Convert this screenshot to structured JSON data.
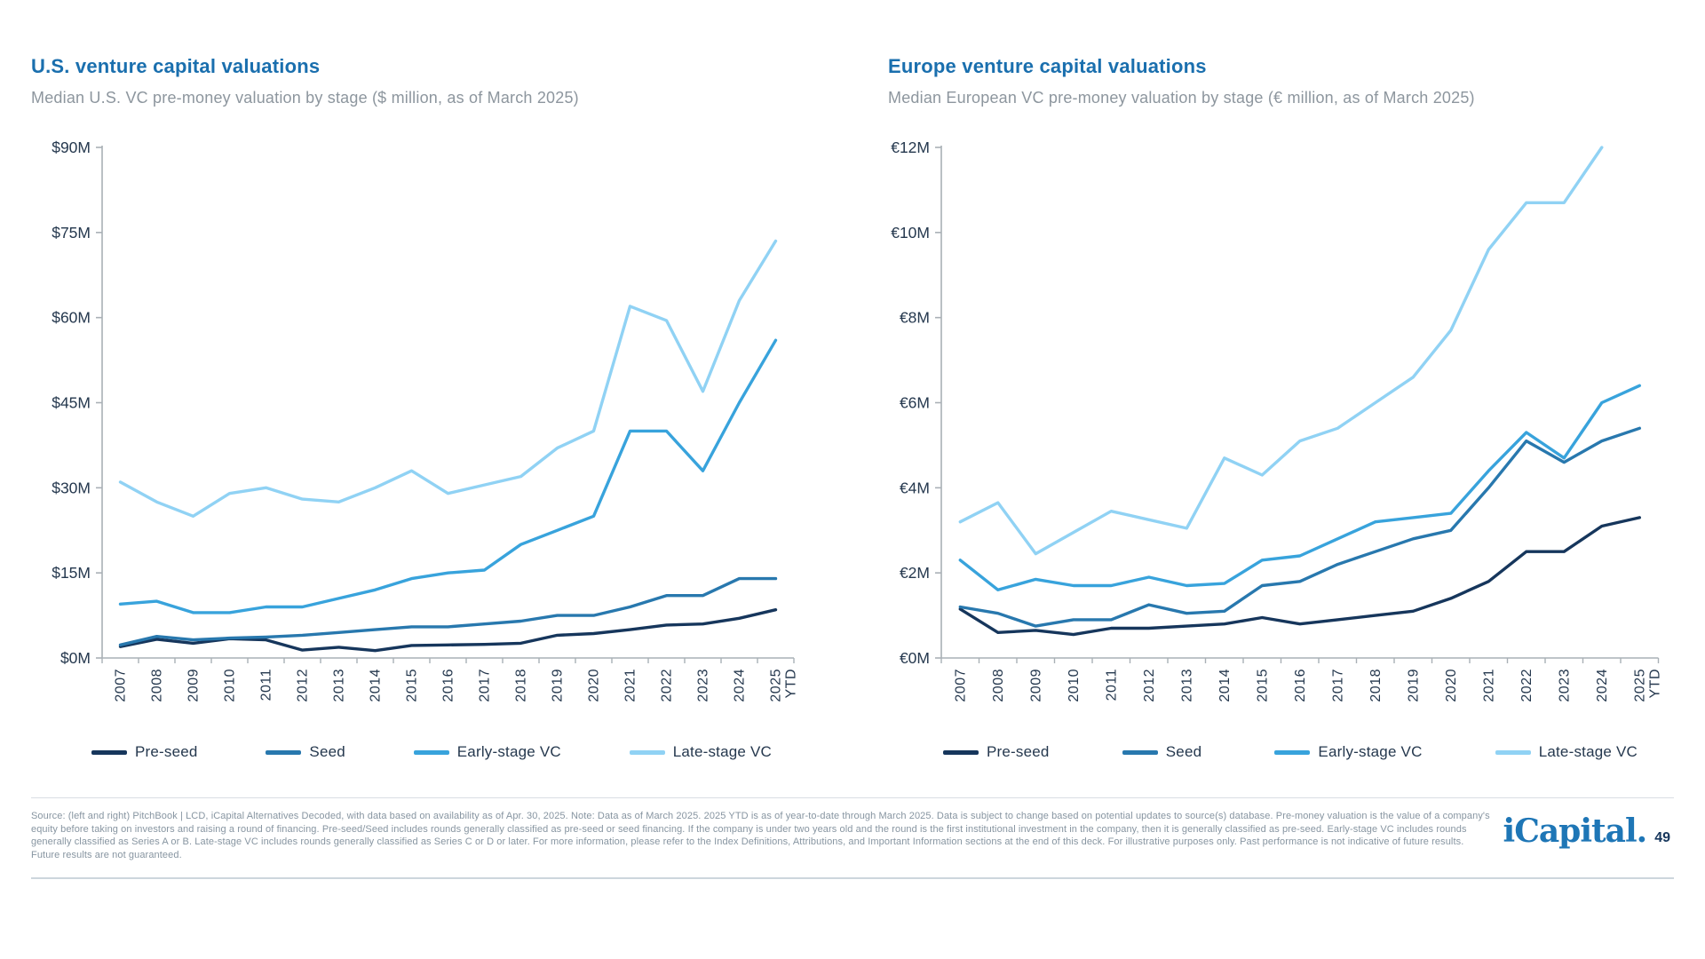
{
  "brand": {
    "logo_text": "iCapital.",
    "page_number": "49"
  },
  "footer": {
    "source_text": "Source: (left and right) PitchBook | LCD, iCapital Alternatives Decoded, with data based on availability as of Apr. 30, 2025. Note: Data as of March 2025. 2025 YTD is as of year-to-date through March 2025. Data is subject to change based on potential updates to source(s) database. Pre-money valuation is the value of a company's equity before taking on investors and raising a round of financing. Pre-seed/Seed includes rounds generally classified as pre-seed or seed financing. If the company is under two years old and the round is the first institutional investment in the company, then it is generally classified as pre-seed. Early-stage VC includes rounds generally classified as Series A or B. Late-stage VC includes rounds generally classified as Series C or D or later. For more information, please refer to the Index Definitions, Attributions, and Important Information sections at the end of this deck. For illustrative purposes only. Past performance is not indicative of future results. Future results are not guaranteed."
  },
  "colors": {
    "pre_seed": "#16365c",
    "seed": "#2878ae",
    "early_stage": "#38a3dc",
    "late_stage": "#90d2f4",
    "axis": "#a9b0b6",
    "tick_label": "#25384e"
  },
  "chart_data": [
    {
      "type": "line",
      "title": "U.S. venture capital valuations",
      "subtitle": "Median U.S. VC pre-money valuation by stage ($ million, as of March 2025)",
      "x_categories": [
        "2007",
        "2008",
        "2009",
        "2010",
        "2011",
        "2012",
        "2013",
        "2014",
        "2015",
        "2016",
        "2017",
        "2018",
        "2019",
        "2020",
        "2021",
        "2022",
        "2023",
        "2024",
        "2025 YTD"
      ],
      "ylim": [
        0,
        90
      ],
      "y_ticks": [
        0,
        15,
        30,
        45,
        60,
        75,
        90
      ],
      "y_tick_labels": [
        "$0M",
        "$15M",
        "$30M",
        "$45M",
        "$60M",
        "$75M",
        "$90M"
      ],
      "grid": false,
      "legend_position": "bottom",
      "series": [
        {
          "name": "Pre-seed",
          "color": "#16365c",
          "values": [
            2.0,
            3.3,
            2.6,
            3.4,
            3.2,
            1.4,
            1.9,
            1.3,
            2.2,
            2.3,
            2.4,
            2.6,
            4.0,
            4.3,
            5.0,
            5.8,
            6.0,
            7.0,
            8.5
          ]
        },
        {
          "name": "Seed",
          "color": "#2878ae",
          "values": [
            2.3,
            3.8,
            3.2,
            3.5,
            3.7,
            4.0,
            4.5,
            5.0,
            5.5,
            5.5,
            6.0,
            6.5,
            7.5,
            7.5,
            9.0,
            11.0,
            11.0,
            14.0,
            14.0
          ]
        },
        {
          "name": "Early-stage VC",
          "color": "#38a3dc",
          "values": [
            9.5,
            10.0,
            8.0,
            8.0,
            9.0,
            9.0,
            10.5,
            12.0,
            14.0,
            15.0,
            15.5,
            20.0,
            22.5,
            25.0,
            40.0,
            40.0,
            33.0,
            45.0,
            56.0
          ]
        },
        {
          "name": "Late-stage VC",
          "color": "#90d2f4",
          "values": [
            31.0,
            27.5,
            25.0,
            29.0,
            30.0,
            28.0,
            27.5,
            30.0,
            33.0,
            29.0,
            30.5,
            32.0,
            37.0,
            40.0,
            62.0,
            59.5,
            47.0,
            63.0,
            73.5
          ]
        }
      ]
    },
    {
      "type": "line",
      "title": "Europe venture capital valuations",
      "subtitle": "Median European VC pre-money valuation by stage (€ million, as of March 2025)",
      "x_categories": [
        "2007",
        "2008",
        "2009",
        "2010",
        "2011",
        "2012",
        "2013",
        "2014",
        "2015",
        "2016",
        "2017",
        "2018",
        "2019",
        "2020",
        "2021",
        "2022",
        "2023",
        "2024",
        "2025 YTD"
      ],
      "ylim": [
        0,
        12
      ],
      "y_ticks": [
        0,
        2,
        4,
        6,
        8,
        10,
        12
      ],
      "y_tick_labels": [
        "€0M",
        "€2M",
        "€4M",
        "€6M",
        "€8M",
        "€10M",
        "€12M"
      ],
      "grid": false,
      "legend_position": "bottom",
      "series": [
        {
          "name": "Pre-seed",
          "color": "#16365c",
          "values": [
            1.15,
            0.6,
            0.65,
            0.55,
            0.7,
            0.7,
            0.75,
            0.8,
            0.95,
            0.8,
            0.9,
            1.0,
            1.1,
            1.4,
            1.8,
            2.5,
            2.5,
            3.1,
            3.3
          ]
        },
        {
          "name": "Seed",
          "color": "#2878ae",
          "values": [
            1.2,
            1.05,
            0.75,
            0.9,
            0.9,
            1.25,
            1.05,
            1.1,
            1.7,
            1.8,
            2.2,
            2.5,
            2.8,
            3.0,
            4.0,
            5.1,
            4.6,
            5.1,
            5.4
          ]
        },
        {
          "name": "Early-stage VC",
          "color": "#38a3dc",
          "values": [
            2.3,
            1.6,
            1.85,
            1.7,
            1.7,
            1.9,
            1.7,
            1.75,
            2.3,
            2.4,
            2.8,
            3.2,
            3.3,
            3.4,
            4.4,
            5.3,
            4.7,
            6.0,
            6.4
          ]
        },
        {
          "name": "Late-stage VC",
          "color": "#90d2f4",
          "values": [
            3.2,
            3.65,
            2.45,
            2.95,
            3.45,
            3.25,
            3.05,
            4.7,
            4.3,
            5.1,
            5.4,
            6.0,
            6.6,
            7.7,
            9.6,
            10.7,
            10.7,
            12.0,
            null
          ]
        }
      ]
    }
  ]
}
